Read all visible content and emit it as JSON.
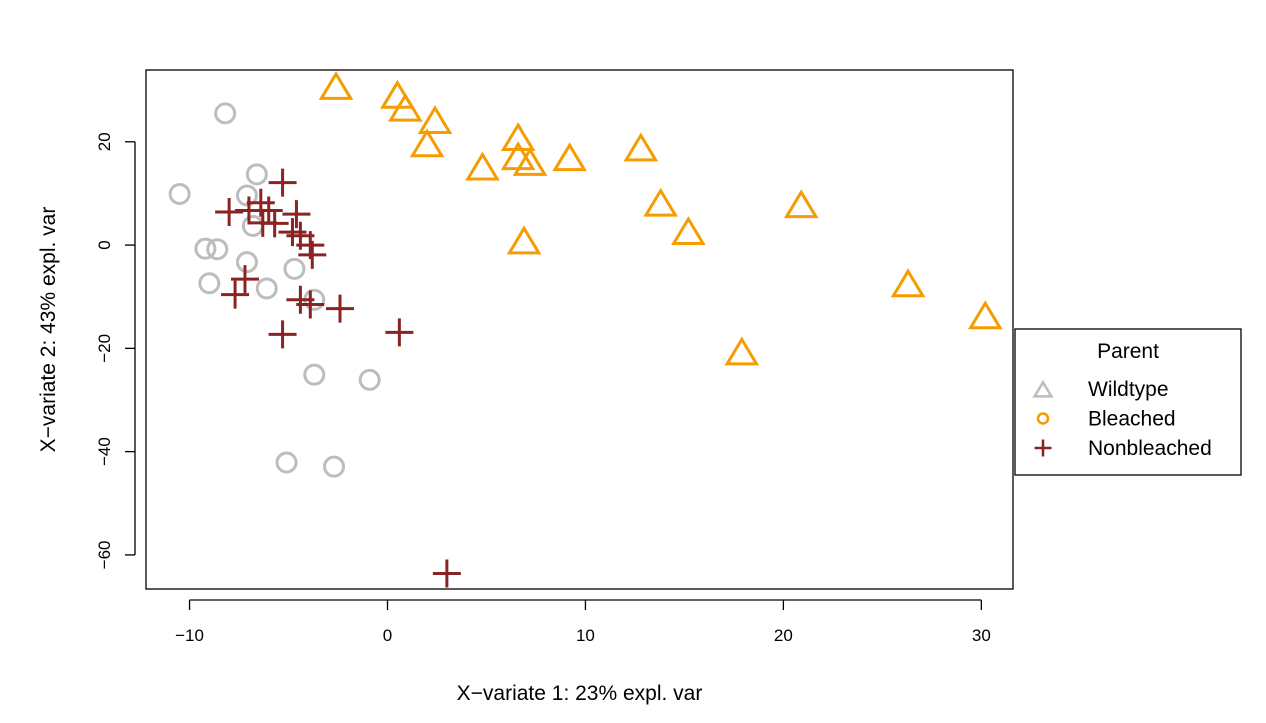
{
  "chart_data": {
    "type": "scatter",
    "title": "",
    "xlabel": "X−variate 1: 23% expl. var",
    "ylabel": "X−variate 2: 43% expl. var",
    "xlim": [
      -12.2,
      31.6
    ],
    "ylim": [
      -66.6,
      33.9
    ],
    "xticks": [
      -10,
      0,
      10,
      20,
      30
    ],
    "yticks": [
      -60,
      -40,
      -20,
      0,
      20
    ],
    "grid": false,
    "legend": {
      "title": "Parent",
      "placement": "right"
    },
    "series": [
      {
        "name": "Wildtype",
        "legend_marker": "triangle",
        "plot_marker": "circle",
        "color": "#bdbdbd",
        "points": [
          [
            -8.2,
            25.5
          ],
          [
            -10.5,
            9.9
          ],
          [
            -6.6,
            13.7
          ],
          [
            -7.1,
            9.6
          ],
          [
            -6.8,
            3.7
          ],
          [
            -9.2,
            -0.7
          ],
          [
            -8.6,
            -0.8
          ],
          [
            -7.1,
            -3.3
          ],
          [
            -9.0,
            -7.4
          ],
          [
            -6.1,
            -8.4
          ],
          [
            -4.7,
            -4.6
          ],
          [
            -3.7,
            -10.6
          ],
          [
            -3.7,
            -25.1
          ],
          [
            -0.9,
            -26.1
          ],
          [
            -5.1,
            -42.1
          ],
          [
            -2.7,
            -42.9
          ]
        ]
      },
      {
        "name": "Bleached",
        "legend_marker": "circle",
        "plot_marker": "triangle",
        "color": "#f59d00",
        "points": [
          [
            -2.6,
            30.2
          ],
          [
            0.5,
            28.5
          ],
          [
            0.9,
            26.0
          ],
          [
            2.4,
            23.6
          ],
          [
            2.0,
            19.1
          ],
          [
            6.6,
            20.3
          ],
          [
            6.6,
            16.6
          ],
          [
            7.2,
            15.5
          ],
          [
            9.2,
            16.4
          ],
          [
            4.8,
            14.6
          ],
          [
            12.8,
            18.3
          ],
          [
            13.8,
            7.6
          ],
          [
            15.2,
            2.1
          ],
          [
            6.9,
            0.3
          ],
          [
            20.9,
            7.3
          ],
          [
            26.3,
            -8.0
          ],
          [
            30.2,
            -14.2
          ],
          [
            17.9,
            -21.2
          ]
        ]
      },
      {
        "name": "Nonbleached",
        "legend_marker": "plus",
        "plot_marker": "plus",
        "color": "#8b2323",
        "points": [
          [
            -5.3,
            12.1
          ],
          [
            -6.4,
            8.2
          ],
          [
            -6.0,
            6.7
          ],
          [
            -8.0,
            6.4
          ],
          [
            -7.0,
            6.7
          ],
          [
            -6.3,
            4.3
          ],
          [
            -5.7,
            4.2
          ],
          [
            -4.6,
            6.0
          ],
          [
            -4.8,
            2.5
          ],
          [
            -4.4,
            1.8
          ],
          [
            -3.9,
            0.0
          ],
          [
            -3.8,
            -1.9
          ],
          [
            -7.2,
            -6.6
          ],
          [
            -7.7,
            -9.6
          ],
          [
            -3.9,
            -11.5
          ],
          [
            -4.4,
            -10.6
          ],
          [
            -2.4,
            -12.3
          ],
          [
            -5.3,
            -17.3
          ],
          [
            0.6,
            -16.9
          ],
          [
            3.0,
            -63.6
          ]
        ]
      }
    ]
  }
}
